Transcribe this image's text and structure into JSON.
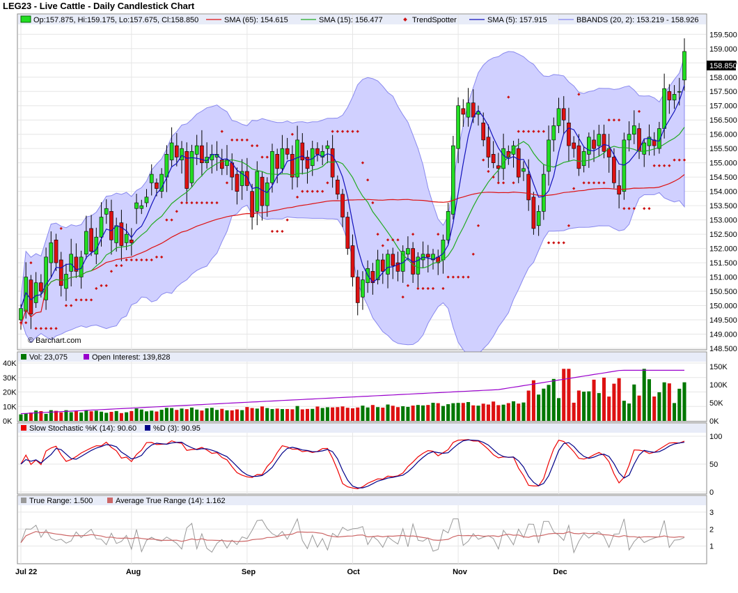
{
  "title": "LEG23 - Live Cattle - Daily Candlestick Chart",
  "watermark": "© Barchart.com",
  "colors": {
    "up": "#22dd22",
    "down": "#dd1111",
    "sma65": "#dd1111",
    "sma15": "#22aa22",
    "trendspotter": "#cc1111",
    "sma5": "#1111bb",
    "bband_fill": "#d0d0ff",
    "bband_line": "#8888ee",
    "oi": "#9900cc",
    "stochK": "#ee0000",
    "stochD": "#000088",
    "tr": "#999999",
    "atr": "#cc6666",
    "grid": "#e6e6e6",
    "panel_bg": "#ffffff",
    "legend_bg": "#e8ecf8"
  },
  "legends": {
    "price": {
      "ohlc": "Op:157.875, Hi:159.175, Lo:157.675, Cl:158.850",
      "sma65": "SMA (65): 154.615",
      "sma15": "SMA (15): 156.477",
      "trendspotter": "TrendSpotter",
      "sma5": "SMA (5): 157.915",
      "bbands": "BBANDS (20, 2): 153.219 - 158.926"
    },
    "volume": {
      "vol": "Vol: 23,075",
      "oi": "Open Interest: 139,828"
    },
    "stoch": {
      "k": "Slow Stochastic %K (14): 90.60",
      "d": "%D (3): 90.95"
    },
    "tr": {
      "tr": "True Range: 1.500",
      "atr": "Average True Range (14): 1.162"
    }
  },
  "last_price_label": "158.850",
  "axes": {
    "price_ticks": [
      "159.500",
      "159.000",
      "158.500",
      "158.000",
      "157.500",
      "157.000",
      "156.500",
      "156.000",
      "155.500",
      "155.000",
      "154.500",
      "154.000",
      "153.500",
      "153.000",
      "152.500",
      "152.000",
      "151.500",
      "151.000",
      "150.500",
      "150.000",
      "149.500",
      "149.000",
      "148.500"
    ],
    "vol_left_ticks": [
      "40K",
      "30K",
      "20K",
      "10K",
      "0K"
    ],
    "vol_right_ticks": [
      "150K",
      "100K",
      "50K",
      "0K"
    ],
    "stoch_ticks": [
      "100",
      "50",
      "0"
    ],
    "tr_ticks": [
      "3",
      "2",
      "1"
    ],
    "months": [
      "Jul 22",
      "Aug",
      "Sep",
      "Oct",
      "Nov",
      "Dec"
    ]
  },
  "chart_data": {
    "type": "candlestick",
    "symbol": "LEG23",
    "price_range": [
      148.5,
      159.8
    ],
    "ohlc_closes": [
      149.9,
      151.0,
      149.7,
      150.8,
      150.5,
      151.7,
      152.2,
      151.5,
      150.7,
      151.1,
      151.8,
      151.2,
      151.7,
      152.6,
      151.9,
      152.4,
      153.1,
      153.4,
      152.3,
      152.8,
      152.1,
      152.5,
      152.2,
      153.6,
      153.5,
      153.8,
      154.6,
      154.1,
      154.6,
      155.3,
      155.7,
      155.2,
      155.5,
      154.1,
      155.4,
      155.6,
      155.0,
      155.2,
      155.3,
      155.3,
      154.8,
      155.1,
      154.5,
      154.0,
      154.7,
      154.2,
      153.1,
      154.7,
      153.5,
      154.3,
      155.4,
      154.8,
      155.5,
      155.3,
      154.5,
      155.8,
      155.1,
      154.8,
      155.5,
      155.3,
      155.4,
      155.6,
      154.5,
      153.9,
      153.1,
      152.0,
      151.0,
      150.1,
      150.9,
      151.3,
      150.8,
      151.6,
      151.2,
      151.8,
      151.4,
      151.2,
      151.9,
      152.0,
      151.1,
      151.7,
      151.8,
      151.7,
      151.8,
      151.5,
      152.3,
      153.3,
      155.6,
      157.0,
      156.7,
      157.1,
      156.6,
      156.8,
      155.8,
      155.2,
      155.0,
      154.8,
      155.5,
      155.2,
      155.6,
      154.5,
      154.8,
      153.7,
      152.7,
      153.3,
      154.6,
      155.8,
      156.3,
      156.9,
      156.5,
      155.6,
      155.5,
      154.8,
      155.4,
      155.9,
      155.5,
      156.0,
      155.4,
      155.2,
      154.3,
      153.9,
      155.8,
      156.0,
      156.3,
      155.4,
      155.7,
      155.9,
      155.6,
      156.2,
      157.6,
      157.2,
      157.4,
      157.5,
      158.9
    ],
    "ohlc_opens": [
      149.5,
      149.8,
      150.9,
      150.1,
      150.8,
      150.2,
      151.5,
      152.3,
      151.6,
      150.6,
      151.2,
      151.7,
      151.0,
      151.8,
      152.7,
      151.8,
      152.4,
      153.2,
      153.3,
      152.2,
      152.9,
      152.2,
      152.3,
      153.4,
      153.4,
      153.6,
      154.3,
      154.3,
      154.0,
      154.5,
      155.1,
      155.6,
      155.1,
      155.4,
      154.3,
      155.3,
      155.6,
      155.0,
      155.1,
      155.2,
      155.1,
      154.9,
      155.0,
      154.6,
      154.2,
      154.7,
      154.0,
      153.3,
      154.5,
      153.5,
      154.3,
      155.3,
      154.8,
      155.5,
      155.3,
      154.5,
      155.7,
      155.2,
      154.9,
      155.5,
      155.2,
      155.5,
      155.5,
      154.4,
      153.9,
      153.1,
      152.1,
      151.0,
      150.3,
      150.8,
      151.2,
      150.9,
      151.6,
      151.1,
      151.8,
      151.5,
      151.2,
      151.8,
      152.0,
      151.1,
      151.6,
      151.8,
      151.6,
      151.7,
      151.6,
      152.3,
      153.2,
      155.5,
      156.9,
      156.6,
      157.1,
      156.7,
      156.4,
      155.9,
      155.3,
      154.9,
      154.8,
      155.4,
      155.3,
      155.5,
      154.7,
      154.6,
      153.8,
      152.8,
      153.3,
      154.7,
      155.8,
      156.3,
      156.9,
      156.4,
      155.7,
      155.6,
      154.9,
      155.3,
      155.8,
      155.6,
      156.0,
      155.5,
      155.2,
      154.2,
      154.0,
      155.8,
      156.0,
      156.2,
      155.3,
      155.6,
      155.8,
      155.5,
      156.2,
      157.5,
      157.2,
      157.5,
      157.9
    ],
    "volume_oi_note": "volume 0-40K left axis, open interest 0-150K right axis",
    "stoch_k_last": 90.6,
    "stoch_d_last": 90.95,
    "true_range_last": 1.5,
    "atr_last": 1.162,
    "sma65_last": 154.615,
    "sma15_last": 156.477,
    "sma5_last": 157.915,
    "bband_upper_last": 158.926,
    "bband_lower_last": 153.219
  }
}
